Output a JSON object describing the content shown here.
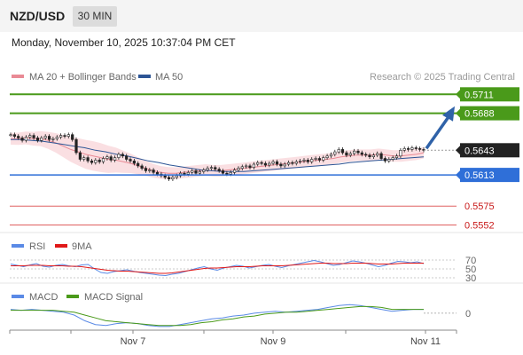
{
  "header": {
    "symbol": "NZD/USD",
    "interval": "30 MIN",
    "datetime": "Monday, November 10, 2025 10:37:04 PM CET"
  },
  "legend": {
    "ma20": "MA 20 + Bollinger Bands",
    "ma50": "MA 50",
    "copyright": "Research © 2025 Trading Central",
    "rsi": "RSI",
    "rsi_ma": "9MA",
    "macd": "MACD",
    "macd_signal": "MACD Signal"
  },
  "colors": {
    "resistance": "#4a9a1a",
    "support": "#2f6fd8",
    "ma20_band": "#f7c9cf",
    "ma20_line": "#e98a95",
    "ma50": "#2d5595",
    "candle": "#222222",
    "arrow": "#2f62a8",
    "price_tag": "#222222",
    "rsi_line": "#5a8ae6",
    "rsi_ma": "#e01818",
    "macd_line": "#5a8ae6",
    "macd_signal": "#4a9a1a"
  },
  "chart_data": [
    {
      "type": "candlestick",
      "title": "NZD/USD 30 MIN",
      "x_ticks": [
        "Nov 7",
        "Nov 9",
        "Nov 11"
      ],
      "ylim": [
        0.5545,
        0.572
      ],
      "levels": [
        {
          "value": 0.5711,
          "label": "0.5711",
          "kind": "resistance"
        },
        {
          "value": 0.5688,
          "label": "0.5688",
          "kind": "resistance"
        },
        {
          "value": 0.5643,
          "label": "0.5643",
          "kind": "last-price"
        },
        {
          "value": 0.5613,
          "label": "0.5613",
          "kind": "support"
        },
        {
          "value": 0.5575,
          "label": "0.5575",
          "kind": "pivot"
        },
        {
          "value": 0.5552,
          "label": "0.5552",
          "kind": "pivot"
        }
      ],
      "close": [
        0.5662,
        0.566,
        0.5658,
        0.5655,
        0.5659,
        0.5661,
        0.5658,
        0.5655,
        0.5658,
        0.566,
        0.5656,
        0.5657,
        0.5659,
        0.5661,
        0.566,
        0.5662,
        0.5656,
        0.564,
        0.5632,
        0.5634,
        0.563,
        0.5628,
        0.5631,
        0.5629,
        0.5633,
        0.5635,
        0.5631,
        0.5634,
        0.5638,
        0.5636,
        0.5632,
        0.563,
        0.5627,
        0.5624,
        0.5621,
        0.5618,
        0.5619,
        0.5616,
        0.5614,
        0.5612,
        0.561,
        0.5608,
        0.561,
        0.5612,
        0.5615,
        0.5614,
        0.5616,
        0.5618,
        0.5615,
        0.5617,
        0.5619,
        0.5621,
        0.5622,
        0.562,
        0.5618,
        0.5615,
        0.5614,
        0.5616,
        0.5619,
        0.5621,
        0.5623,
        0.5624,
        0.5622,
        0.5626,
        0.5628,
        0.5627,
        0.5625,
        0.5627,
        0.5629,
        0.5626,
        0.5624,
        0.5626,
        0.5628,
        0.5627,
        0.5629,
        0.563,
        0.5631,
        0.5629,
        0.5632,
        0.5633,
        0.5631,
        0.5634,
        0.5636,
        0.5638,
        0.5641,
        0.5644,
        0.564,
        0.5637,
        0.5639,
        0.5642,
        0.564,
        0.5638,
        0.5637,
        0.5635,
        0.5637,
        0.5639,
        0.5633,
        0.563,
        0.5632,
        0.5634,
        0.5636,
        0.5643,
        0.5645,
        0.5644,
        0.5646,
        0.5645,
        0.5644,
        0.5643
      ],
      "ma20": [
        0.5657,
        0.5657,
        0.5658,
        0.5657,
        0.5657,
        0.5655,
        0.5652,
        0.5648,
        0.5644,
        0.5641,
        0.5638,
        0.5636,
        0.5634,
        0.5632,
        0.5631,
        0.5629,
        0.5627,
        0.5624,
        0.5621,
        0.5618,
        0.5616,
        0.5615,
        0.5615,
        0.5616,
        0.5617,
        0.5618,
        0.5619,
        0.5618,
        0.5618,
        0.5619,
        0.562,
        0.5621,
        0.5622,
        0.5623,
        0.5624,
        0.5625,
        0.5626,
        0.5627,
        0.5628,
        0.5629,
        0.563,
        0.5631,
        0.5632,
        0.5633,
        0.5635,
        0.5636,
        0.5637,
        0.5637,
        0.5637,
        0.5638,
        0.5637,
        0.5636,
        0.5636,
        0.5637,
        0.5638,
        0.564
      ],
      "ma50": [
        0.5656,
        0.5656,
        0.5655,
        0.5654,
        0.5652,
        0.565,
        0.5648,
        0.5646,
        0.5643,
        0.5641,
        0.5638,
        0.5636,
        0.5633,
        0.563,
        0.5628,
        0.5625,
        0.5623,
        0.5621,
        0.5619,
        0.5618,
        0.5617,
        0.5617,
        0.5617,
        0.5618,
        0.5619,
        0.562,
        0.5621,
        0.5622,
        0.5623,
        0.5624,
        0.5625,
        0.5626,
        0.5628,
        0.5629,
        0.563,
        0.5631,
        0.5632,
        0.5633,
        0.5634,
        0.5635
      ],
      "arrow": {
        "from_value": 0.5643,
        "to_value": 0.5703
      }
    },
    {
      "type": "line",
      "title": "RSI",
      "levels": [
        70,
        50,
        30
      ],
      "series": [
        {
          "name": "RSI",
          "values": [
            61,
            58,
            55,
            59,
            62,
            56,
            54,
            58,
            60,
            57,
            55,
            59,
            60,
            50,
            42,
            40,
            44,
            46,
            48,
            45,
            42,
            40,
            38,
            36,
            35,
            38,
            40,
            44,
            48,
            52,
            55,
            50,
            47,
            52,
            55,
            58,
            56,
            52,
            55,
            58,
            60,
            56,
            53,
            57,
            60,
            63,
            66,
            69,
            66,
            62,
            58,
            60,
            64,
            68,
            66,
            63,
            59,
            55,
            58,
            63,
            67,
            66,
            64,
            66,
            62
          ]
        },
        {
          "name": "9MA",
          "values": [
            57,
            57,
            57,
            58,
            58,
            58,
            57,
            57,
            57,
            56,
            56,
            55,
            53,
            51,
            49,
            47,
            46,
            45,
            45,
            44,
            43,
            42,
            41,
            40,
            40,
            41,
            43,
            45,
            47,
            49,
            51,
            52,
            52,
            53,
            54,
            55,
            55,
            55,
            56,
            57,
            57,
            57,
            57,
            58,
            59,
            60,
            61,
            62,
            63,
            63,
            62,
            62,
            62,
            63,
            63,
            63,
            62,
            61,
            61,
            61,
            62,
            63,
            63,
            63,
            63
          ]
        }
      ]
    },
    {
      "type": "line",
      "title": "MACD",
      "levels": [
        0
      ],
      "series": [
        {
          "name": "MACD",
          "values": [
            0.0004,
            0.0003,
            0.0004,
            0.0003,
            0.0002,
            0.0001,
            -0.0002,
            -0.0008,
            -0.0012,
            -0.0013,
            -0.0011,
            -0.001,
            -0.0011,
            -0.0013,
            -0.0014,
            -0.0014,
            -0.0012,
            -0.001,
            -0.0008,
            -0.0006,
            -0.0005,
            -0.0003,
            -0.0002,
            0.0,
            0.0001,
            0.0002,
            0.0001,
            0.0002,
            0.0003,
            0.0004,
            0.0006,
            0.0008,
            0.0009,
            0.0008,
            0.0006,
            0.0004,
            0.0002,
            0.0003,
            0.0004,
            0.0004
          ]
        },
        {
          "name": "MACD Signal",
          "values": [
            0.0003,
            0.0003,
            0.0003,
            0.0003,
            0.0003,
            0.0002,
            0.0001,
            -0.0002,
            -0.0005,
            -0.0008,
            -0.0009,
            -0.001,
            -0.0011,
            -0.0012,
            -0.0013,
            -0.0013,
            -0.0013,
            -0.0012,
            -0.001,
            -0.0009,
            -0.0007,
            -0.0006,
            -0.0004,
            -0.0003,
            -0.0001,
            0.0,
            0.0001,
            0.0001,
            0.0002,
            0.0003,
            0.0004,
            0.0005,
            0.0006,
            0.0007,
            0.0007,
            0.0006,
            0.0004,
            0.0004,
            0.0004,
            0.0004
          ]
        }
      ]
    }
  ]
}
